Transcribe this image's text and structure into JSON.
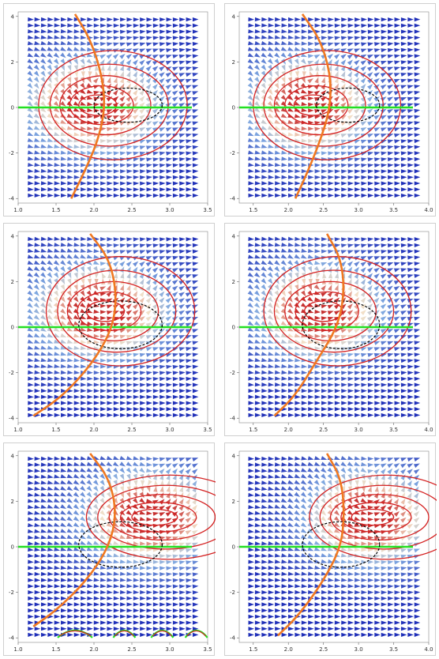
{
  "chart_data": [
    {
      "type": "vector-field-contour",
      "panel": "row1-left",
      "xlim": [
        1.0,
        3.5
      ],
      "ylim": [
        -4.2,
        4.2
      ],
      "xticks": [
        "1.0",
        "1.5",
        "2.0",
        "2.5",
        "3.0",
        "3.5"
      ],
      "yticks": [
        "-4",
        "-2",
        "0",
        "2",
        "4"
      ],
      "vortex_center": [
        2.0,
        0.1
      ],
      "contour_radii_x": [
        0.25,
        0.42,
        0.6,
        0.78,
        0.98
      ],
      "contour_radii_y": [
        0.45,
        0.85,
        1.3,
        1.8,
        2.4
      ],
      "dashed_ellipse": {
        "center": [
          2.45,
          0.1
        ],
        "rx": 0.45,
        "ry": 0.75
      },
      "green_line_y": 0,
      "orange_curve": [
        [
          1.75,
          4.1
        ],
        [
          1.95,
          3.0
        ],
        [
          2.1,
          1.5
        ],
        [
          2.15,
          0.0
        ],
        [
          2.05,
          -1.5
        ],
        [
          1.85,
          -3.0
        ],
        [
          1.7,
          -4.0
        ]
      ]
    },
    {
      "type": "vector-field-contour",
      "panel": "row1-right",
      "xlim": [
        1.3,
        4.0
      ],
      "ylim": [
        -4.2,
        4.2
      ],
      "xticks": [
        "1.5",
        "2.0",
        "2.5",
        "3.0",
        "3.5",
        "4.0"
      ],
      "yticks": [
        "-4",
        "-2",
        "0",
        "2",
        "4"
      ],
      "vortex_center": [
        2.3,
        0.1
      ],
      "contour_radii_x": [
        0.27,
        0.45,
        0.65,
        0.85,
        1.05
      ],
      "contour_radii_y": [
        0.45,
        0.85,
        1.3,
        1.8,
        2.4
      ],
      "dashed_ellipse": {
        "center": [
          2.85,
          0.1
        ],
        "rx": 0.45,
        "ry": 0.75
      },
      "green_line_y": 0,
      "orange_curve": [
        [
          2.2,
          4.1
        ],
        [
          2.45,
          3.0
        ],
        [
          2.6,
          1.5
        ],
        [
          2.6,
          0.0
        ],
        [
          2.45,
          -1.5
        ],
        [
          2.25,
          -3.0
        ],
        [
          2.1,
          -4.0
        ]
      ]
    },
    {
      "type": "vector-field-contour",
      "panel": "row2-left",
      "xlim": [
        1.0,
        3.5
      ],
      "ylim": [
        -4.2,
        4.2
      ],
      "xticks": [
        "1.0",
        "1.5",
        "2.0",
        "2.5",
        "3.0",
        "3.5"
      ],
      "yticks": [
        "-4",
        "-2",
        "0",
        "2",
        "4"
      ],
      "vortex_center": [
        2.1,
        0.7
      ],
      "contour_radii_x": [
        0.25,
        0.42,
        0.6,
        0.78,
        0.98
      ],
      "contour_radii_y": [
        0.45,
        0.85,
        1.3,
        1.8,
        2.4
      ],
      "dashed_ellipse": {
        "center": [
          2.35,
          0.1
        ],
        "rx": 0.55,
        "ry": 1.05
      },
      "green_line_y": 0,
      "orange_curve": [
        [
          1.95,
          4.1
        ],
        [
          2.2,
          3.0
        ],
        [
          2.3,
          1.5
        ],
        [
          2.25,
          0.0
        ],
        [
          2.0,
          -1.5
        ],
        [
          1.6,
          -3.0
        ],
        [
          1.2,
          -3.9
        ]
      ]
    },
    {
      "type": "vector-field-contour",
      "panel": "row2-right",
      "xlim": [
        1.3,
        4.0
      ],
      "ylim": [
        -4.2,
        4.2
      ],
      "xticks": [
        "1.5",
        "2.0",
        "2.5",
        "3.0",
        "3.5",
        "4.0"
      ],
      "yticks": [
        "-4",
        "-2",
        "0",
        "2",
        "4"
      ],
      "vortex_center": [
        2.45,
        0.7
      ],
      "contour_radii_x": [
        0.27,
        0.45,
        0.65,
        0.85,
        1.05
      ],
      "contour_radii_y": [
        0.45,
        0.85,
        1.3,
        1.8,
        2.4
      ],
      "dashed_ellipse": {
        "center": [
          2.75,
          0.1
        ],
        "rx": 0.55,
        "ry": 1.05
      },
      "green_line_y": 0,
      "orange_curve": [
        [
          2.55,
          4.1
        ],
        [
          2.75,
          3.0
        ],
        [
          2.8,
          1.5
        ],
        [
          2.7,
          0.0
        ],
        [
          2.4,
          -1.5
        ],
        [
          2.1,
          -3.0
        ],
        [
          1.8,
          -3.9
        ]
      ]
    },
    {
      "type": "vector-field-contour",
      "panel": "row3-left",
      "xlim": [
        1.0,
        3.5
      ],
      "ylim": [
        -4.2,
        4.2
      ],
      "xticks": [
        "1.0",
        "1.5",
        "2.0",
        "2.5",
        "3.0",
        "3.5"
      ],
      "yticks": [
        "-4",
        "-2",
        "0",
        "2",
        "4"
      ],
      "vortex_center": [
        2.75,
        1.3
      ],
      "contour_radii_x": [
        0.3,
        0.5,
        0.7,
        0.9,
        1.1
      ],
      "contour_radii_y": [
        0.35,
        0.65,
        1.0,
        1.4,
        1.85
      ],
      "dashed_ellipse": {
        "center": [
          2.35,
          0.1
        ],
        "rx": 0.55,
        "ry": 1.0
      },
      "green_line_y": 0,
      "orange_curve": [
        [
          1.95,
          4.1
        ],
        [
          2.2,
          3.0
        ],
        [
          2.3,
          1.5
        ],
        [
          2.2,
          0.0
        ],
        [
          1.9,
          -1.5
        ],
        [
          1.5,
          -2.8
        ],
        [
          1.2,
          -3.5
        ]
      ],
      "small_arcs_x": [
        1.75,
        2.4,
        2.9,
        3.35
      ]
    },
    {
      "type": "vector-field-contour",
      "panel": "row3-right",
      "xlim": [
        1.3,
        4.0
      ],
      "ylim": [
        -4.2,
        4.2
      ],
      "xticks": [
        "1.5",
        "2.0",
        "2.5",
        "3.0",
        "3.5",
        "4.0"
      ],
      "yticks": [
        "-4",
        "-2",
        "0",
        "2",
        "4"
      ],
      "vortex_center": [
        3.15,
        1.3
      ],
      "contour_radii_x": [
        0.3,
        0.5,
        0.7,
        0.9,
        1.1
      ],
      "contour_radii_y": [
        0.35,
        0.65,
        1.0,
        1.4,
        1.85
      ],
      "dashed_ellipse": {
        "center": [
          2.75,
          0.1
        ],
        "rx": 0.55,
        "ry": 1.0
      },
      "green_line_y": 0,
      "orange_curve": [
        [
          2.55,
          4.1
        ],
        [
          2.75,
          3.0
        ],
        [
          2.8,
          1.5
        ],
        [
          2.75,
          0.0
        ],
        [
          2.5,
          -1.5
        ],
        [
          2.15,
          -3.0
        ],
        [
          1.85,
          -3.9
        ]
      ]
    }
  ],
  "colors": {
    "arrow_far": "#1f2fb8",
    "arrow_mid": "#7ea7e0",
    "arrow_near": "#f2e0c8",
    "arrow_core": "#c63030",
    "contour": "#d42020",
    "orange_curve": "#f07820",
    "green_line": "#22e022",
    "dashed": "#000000"
  }
}
